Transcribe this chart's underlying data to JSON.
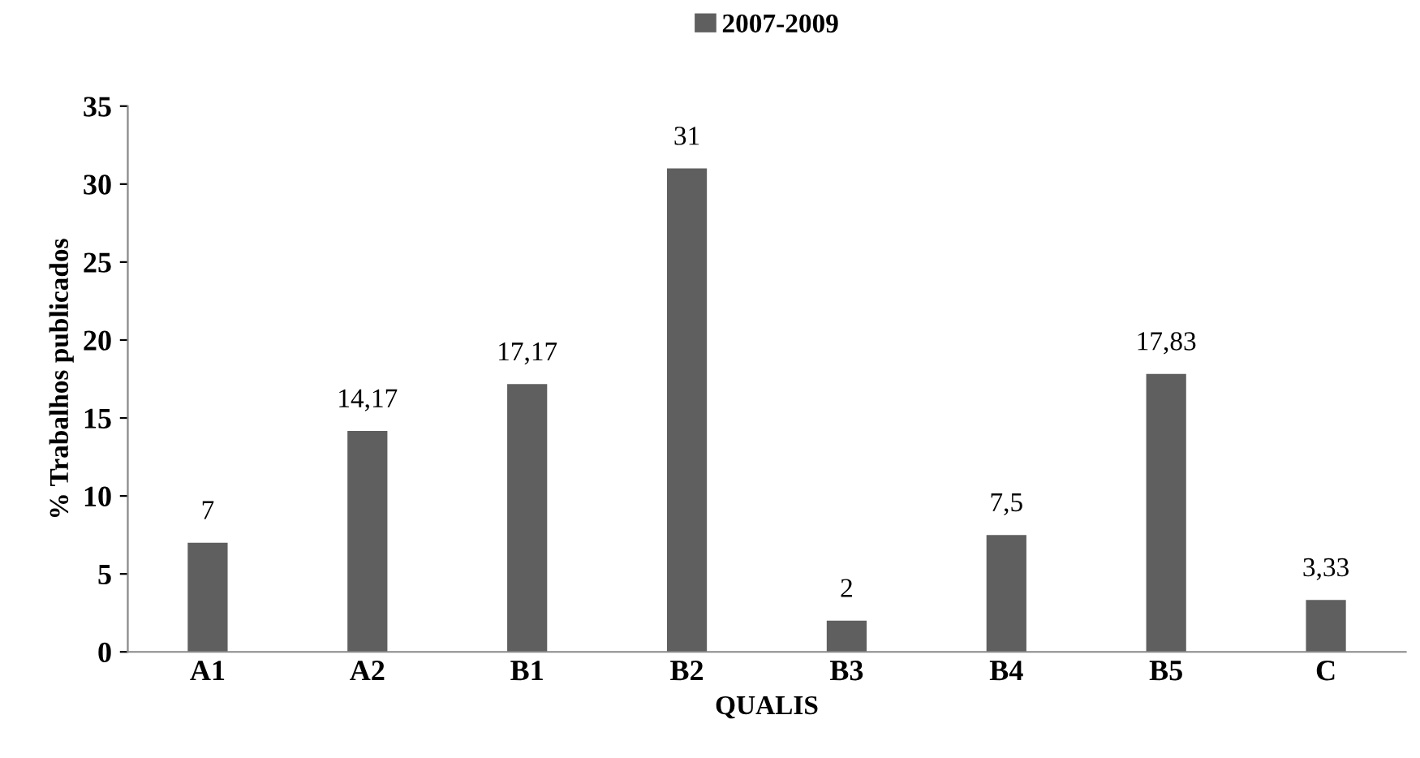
{
  "chart_data": {
    "type": "bar",
    "xlabel": "QUALIS",
    "ylabel": "% Trabalhos publicados",
    "categories": [
      "A1",
      "A2",
      "B1",
      "B2",
      "B3",
      "B4",
      "B5",
      "C"
    ],
    "series": [
      {
        "name": "2007-2009",
        "color": "#5f5f5f",
        "values": [
          7,
          14.17,
          17.17,
          31,
          2,
          7.5,
          17.83,
          3.33
        ],
        "value_labels": [
          "7",
          "14,17",
          "17,17",
          "31",
          "2",
          "7,5",
          "17,83",
          "3,33"
        ]
      }
    ],
    "ylim": [
      0,
      35
    ],
    "yticks": [
      0,
      5,
      10,
      15,
      20,
      25,
      30,
      35
    ],
    "grid": false,
    "legend": "top"
  }
}
